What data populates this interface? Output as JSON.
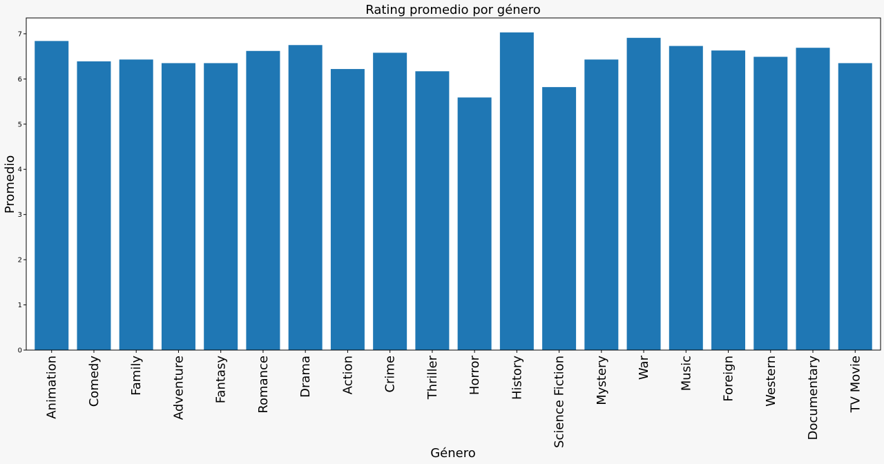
{
  "chart_data": {
    "type": "bar",
    "title": "Rating promedio por género",
    "xlabel": "Género",
    "ylabel": "Promedio",
    "ylim": [
      0,
      7.35
    ],
    "yticks": [
      0,
      1,
      2,
      3,
      4,
      5,
      6,
      7
    ],
    "grid": false,
    "bar_color": "#1f77b4",
    "categories": [
      "Animation",
      "Comedy",
      "Family",
      "Adventure",
      "Fantasy",
      "Romance",
      "Drama",
      "Action",
      "Crime",
      "Thriller",
      "Horror",
      "History",
      "Science Fiction",
      "Mystery",
      "War",
      "Music",
      "Foreign",
      "Western",
      "Documentary",
      "TV Movie"
    ],
    "values": [
      6.84,
      6.39,
      6.43,
      6.35,
      6.35,
      6.62,
      6.75,
      6.22,
      6.58,
      6.17,
      5.59,
      7.03,
      5.82,
      6.43,
      6.91,
      6.73,
      6.63,
      6.49,
      6.69,
      6.35
    ]
  }
}
